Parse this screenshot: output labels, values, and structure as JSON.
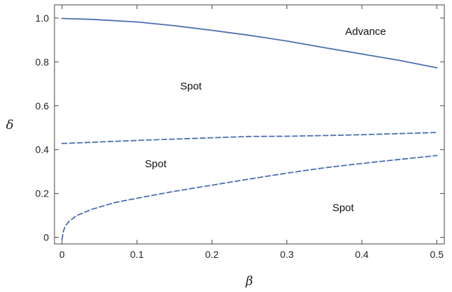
{
  "chart_data": {
    "type": "line",
    "title": "",
    "xlabel": "β",
    "ylabel": "δ",
    "xlim": [
      -0.01,
      0.51
    ],
    "ylim": [
      -0.03,
      1.06
    ],
    "xticks": [
      {
        "value": 0,
        "label": "0"
      },
      {
        "value": 0.1,
        "label": "0.1"
      },
      {
        "value": 0.2,
        "label": "0.2"
      },
      {
        "value": 0.3,
        "label": "0.3"
      },
      {
        "value": 0.4,
        "label": "0.4"
      },
      {
        "value": 0.5,
        "label": "0.5"
      }
    ],
    "yticks": [
      {
        "value": 0,
        "label": "0"
      },
      {
        "value": 0.2,
        "label": "0.2"
      },
      {
        "value": 0.4,
        "label": "0.4"
      },
      {
        "value": 0.6,
        "label": "0.6"
      },
      {
        "value": 0.8,
        "label": "0.8"
      },
      {
        "value": 1.0,
        "label": "1.0"
      }
    ],
    "grid": false,
    "line_color": "#4a6fb0",
    "series": [
      {
        "style": "solid",
        "x": [
          0,
          0.04,
          0.1,
          0.15,
          0.2,
          0.25,
          0.3,
          0.35,
          0.4,
          0.45,
          0.5
        ],
        "y": [
          0.998,
          0.994,
          0.982,
          0.965,
          0.944,
          0.921,
          0.895,
          0.865,
          0.836,
          0.807,
          0.773
        ]
      },
      {
        "style": "dashed",
        "x": [
          0,
          0.05,
          0.1,
          0.15,
          0.2,
          0.25,
          0.3,
          0.35,
          0.4,
          0.45,
          0.5
        ],
        "y": [
          0.428,
          0.435,
          0.442,
          0.448,
          0.454,
          0.46,
          0.461,
          0.464,
          0.468,
          0.473,
          0.478
        ]
      },
      {
        "style": "dashed",
        "x": [
          0,
          0.002,
          0.005,
          0.01,
          0.02,
          0.04,
          0.07,
          0.1,
          0.15,
          0.2,
          0.25,
          0.3,
          0.35,
          0.4,
          0.45,
          0.5
        ],
        "y": [
          -0.01,
          0.03,
          0.055,
          0.075,
          0.1,
          0.128,
          0.158,
          0.178,
          0.21,
          0.238,
          0.266,
          0.293,
          0.317,
          0.337,
          0.355,
          0.373
        ]
      }
    ],
    "annotations": [
      {
        "text": "Advance",
        "x": 0.405,
        "y": 0.94
      },
      {
        "text": "Spot",
        "x": 0.172,
        "y": 0.69
      },
      {
        "text": "Spot",
        "x": 0.125,
        "y": 0.335
      },
      {
        "text": "Spot",
        "x": 0.375,
        "y": 0.135
      }
    ]
  }
}
